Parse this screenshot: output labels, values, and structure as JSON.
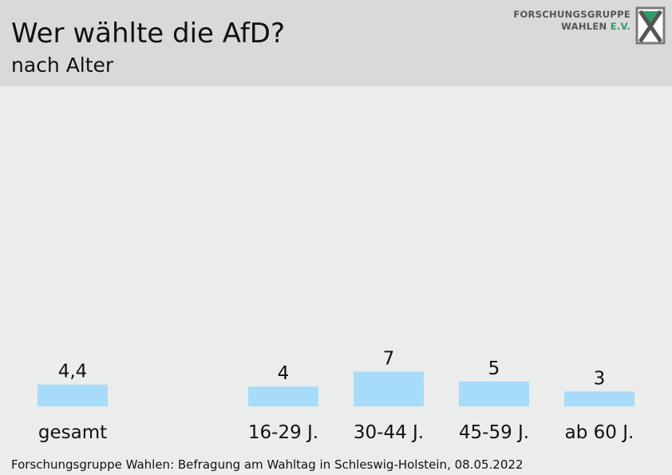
{
  "header": {
    "title": "Wer wählte die AfD?",
    "subtitle": "nach Alter",
    "logo_line1": "FORSCHUNGSGRUPPE",
    "logo_line2a": "WAHLEN ",
    "logo_line2b": "E.V."
  },
  "colors": {
    "bar": "#a6dbf9",
    "header_bg": "#d9d9d9",
    "plot_bg": "#eaedec",
    "logo_accent": "#2f9a6a"
  },
  "chart_data": {
    "type": "bar",
    "title": "Wer wählte die AfD?",
    "subtitle": "nach Alter",
    "categories": [
      "gesamt",
      "16-29 J.",
      "30-44 J.",
      "45-59 J.",
      "ab 60 J."
    ],
    "values": [
      4.4,
      4,
      7,
      5,
      3
    ],
    "value_labels": [
      "4,4",
      "4",
      "7",
      "5",
      "3"
    ],
    "xlabel": "",
    "ylabel": "",
    "grid": false,
    "legend": "none"
  },
  "footer": {
    "source": "Forschungsgruppe Wahlen: Befragung am Wahltag in Schleswig-Holstein, 08.05.2022"
  }
}
